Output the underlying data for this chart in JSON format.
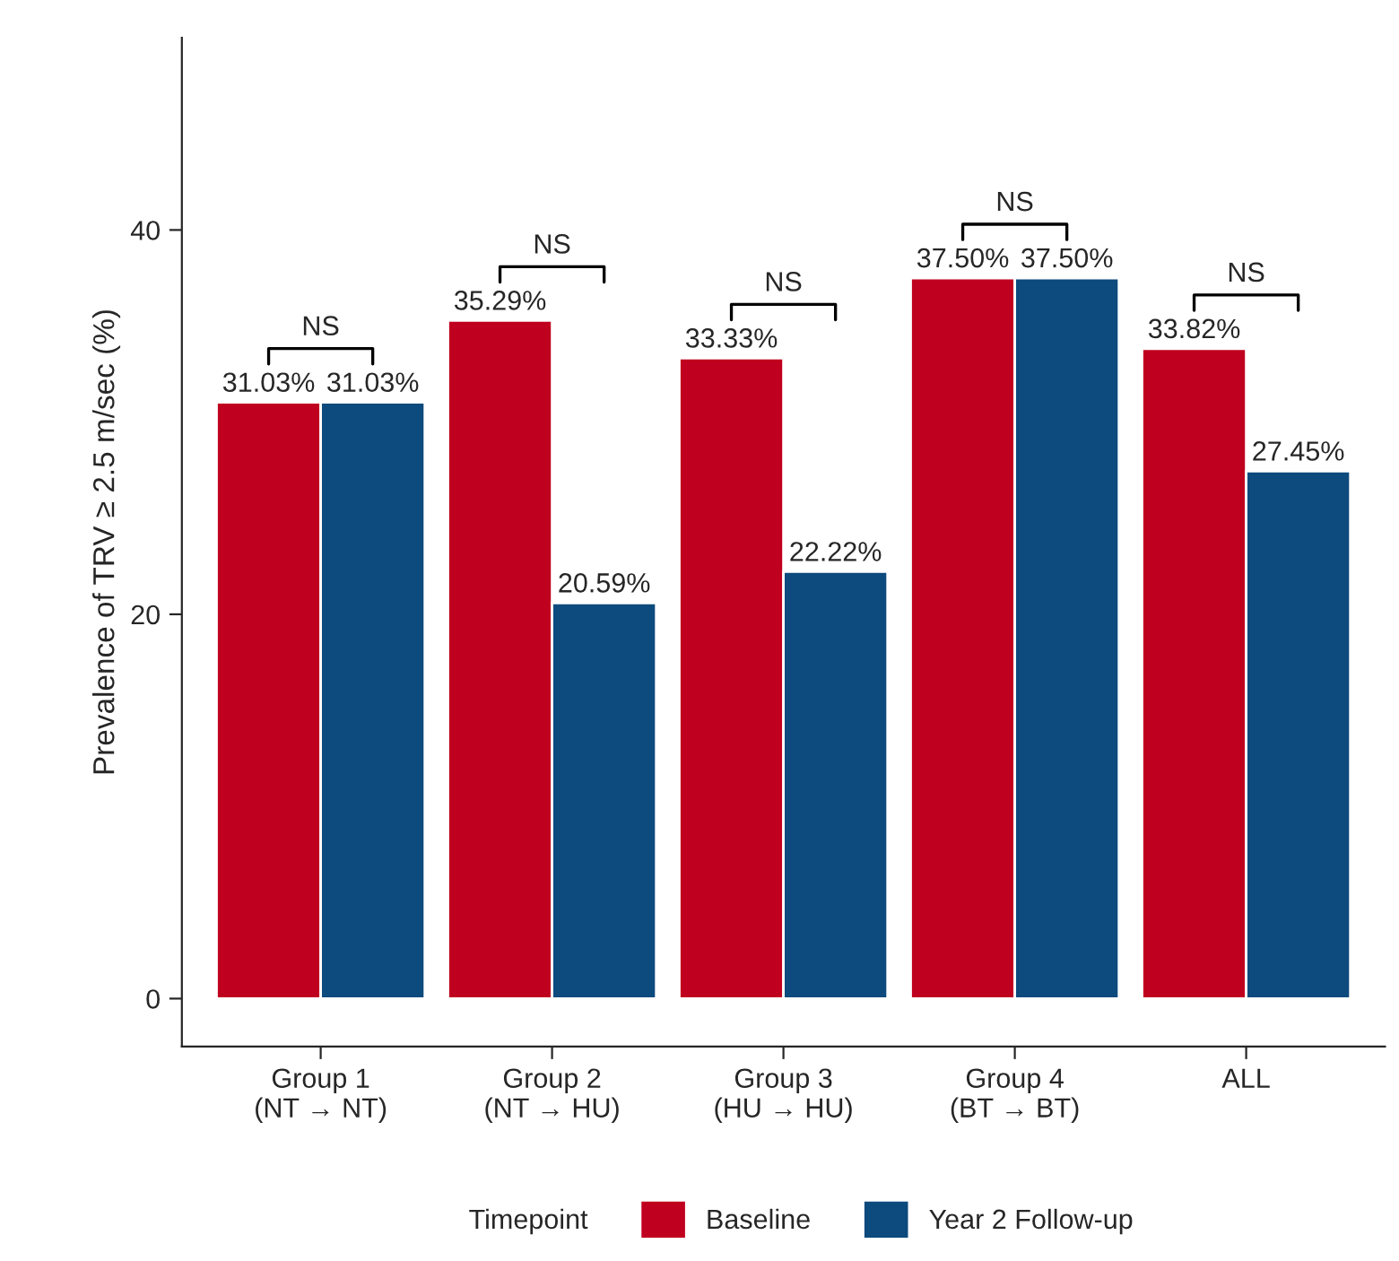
{
  "chart_data": {
    "type": "bar",
    "ylabel": "Prevalence of TRV ≥ 2.5 m/sec (%)",
    "categories": [
      "Group 1\n(NT → NT)",
      "Group 2\n(NT → HU)",
      "Group 3\n(HU → HU)",
      "Group 4\n(BT → BT)",
      "ALL"
    ],
    "series": [
      {
        "name": "Baseline",
        "color": "#c0001f",
        "values": [
          31.03,
          35.29,
          33.33,
          37.5,
          33.82
        ],
        "value_labels": [
          "31.03%",
          "35.29%",
          "33.33%",
          "37.50%",
          "33.82%"
        ]
      },
      {
        "name": "Year 2 Follow-up",
        "color": "#0d4a7d",
        "values": [
          31.03,
          20.59,
          22.22,
          37.5,
          27.45
        ],
        "value_labels": [
          "31.03%",
          "20.59%",
          "22.22%",
          "37.50%",
          "27.45%"
        ]
      }
    ],
    "legend_title": "Timepoint",
    "legend": "bottom",
    "ylim": [
      -2.5,
      50
    ],
    "yticks": [
      0,
      20,
      40
    ],
    "grid": false,
    "annotations": [
      "NS",
      "NS",
      "NS",
      "NS",
      "NS"
    ]
  }
}
